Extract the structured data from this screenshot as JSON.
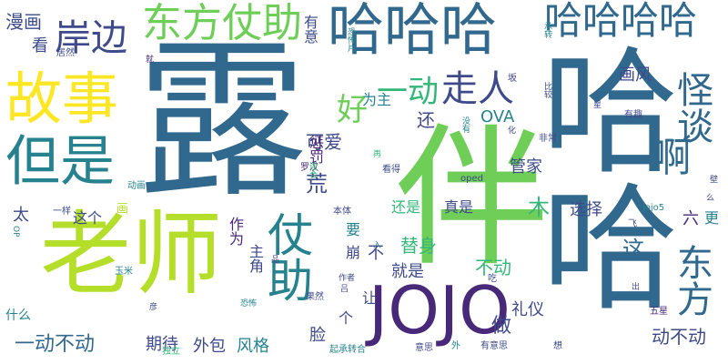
{
  "palette": {
    "dark_purple": "#482878",
    "indigo": "#3e4a89",
    "blue": "#31688e",
    "teal": "#26828e",
    "green": "#35b779",
    "light_green": "#6ece58",
    "yellow_green": "#b5de2b",
    "yellow": "#fde725"
  },
  "words": [
    {
      "text": "露",
      "weight": 1.0,
      "color": "blue"
    },
    {
      "text": "伴",
      "weight": 0.98,
      "color": "light_green"
    },
    {
      "text": "哈哈",
      "weight": 0.9,
      "color": "blue"
    },
    {
      "text": "老师",
      "weight": 0.7,
      "color": "yellow_green"
    },
    {
      "text": "哈哈哈",
      "weight": 0.55,
      "color": "blue"
    },
    {
      "text": "JOJO",
      "weight": 0.48,
      "color": "dark_purple"
    },
    {
      "text": "故事",
      "weight": 0.45,
      "color": "yellow"
    },
    {
      "text": "但是",
      "weight": 0.44,
      "color": "teal"
    },
    {
      "text": "仗助",
      "weight": 0.38,
      "color": "teal"
    },
    {
      "text": "东方仗助",
      "weight": 0.3,
      "color": "light_green"
    },
    {
      "text": "哈哈哈哈",
      "weight": 0.3,
      "color": "blue"
    },
    {
      "text": "岸边",
      "weight": 0.28,
      "color": "indigo"
    },
    {
      "text": "怪谈",
      "weight": 0.26,
      "color": "blue"
    },
    {
      "text": "东方",
      "weight": 0.26,
      "color": "blue"
    },
    {
      "text": "啊",
      "weight": 0.24,
      "color": "blue"
    },
    {
      "text": "走人",
      "weight": 0.22,
      "color": "indigo"
    },
    {
      "text": "一动",
      "weight": 0.18,
      "color": "green"
    },
    {
      "text": "好",
      "weight": 0.18,
      "color": "light_green"
    },
    {
      "text": "漫画",
      "weight": 0.12,
      "color": "indigo"
    },
    {
      "text": "有意",
      "weight": 0.1,
      "color": "indigo"
    },
    {
      "text": "画风",
      "weight": 0.12,
      "color": "indigo"
    },
    {
      "text": "看",
      "weight": 0.1,
      "color": "indigo"
    },
    {
      "text": "还",
      "weight": 0.12,
      "color": "indigo"
    },
    {
      "text": "可爱",
      "weight": 0.12,
      "color": "indigo"
    },
    {
      "text": "OVA",
      "weight": 0.12,
      "color": "teal"
    },
    {
      "text": "为主",
      "weight": 0.1,
      "color": "teal"
    },
    {
      "text": "惩罚",
      "weight": 0.1,
      "color": "dark_purple"
    },
    {
      "text": "管家",
      "weight": 0.12,
      "color": "indigo"
    },
    {
      "text": "荒",
      "weight": 0.14,
      "color": "indigo"
    },
    {
      "text": "木",
      "weight": 0.14,
      "color": "green"
    },
    {
      "text": "选择",
      "weight": 0.12,
      "color": "indigo"
    },
    {
      "text": "太",
      "weight": 0.1,
      "color": "indigo"
    },
    {
      "text": "这个",
      "weight": 0.1,
      "color": "indigo"
    },
    {
      "text": "还是",
      "weight": 0.1,
      "color": "green"
    },
    {
      "text": "真是",
      "weight": 0.1,
      "color": "indigo"
    },
    {
      "text": "要",
      "weight": 0.1,
      "color": "teal"
    },
    {
      "text": "主角",
      "weight": 0.1,
      "color": "indigo"
    },
    {
      "text": "作为",
      "weight": 0.1,
      "color": "dark_purple"
    },
    {
      "text": "崩",
      "weight": 0.1,
      "color": "indigo"
    },
    {
      "text": "替身",
      "weight": 0.12,
      "color": "green"
    },
    {
      "text": "不",
      "weight": 0.1,
      "color": "indigo"
    },
    {
      "text": "就是",
      "weight": 0.1,
      "color": "indigo"
    },
    {
      "text": "不动",
      "weight": 0.12,
      "color": "green"
    },
    {
      "text": "这",
      "weight": 0.14,
      "color": "blue"
    },
    {
      "text": "个",
      "weight": 0.1,
      "color": "indigo"
    },
    {
      "text": "让",
      "weight": 0.1,
      "color": "indigo"
    },
    {
      "text": "礼仪",
      "weight": 0.1,
      "color": "indigo"
    },
    {
      "text": "做",
      "weight": 0.14,
      "color": "indigo"
    },
    {
      "text": "脸",
      "weight": 0.1,
      "color": "indigo"
    },
    {
      "text": "一动不动",
      "weight": 0.14,
      "color": "blue"
    },
    {
      "text": "期待",
      "weight": 0.1,
      "color": "indigo"
    },
    {
      "text": "外包",
      "weight": 0.1,
      "color": "indigo"
    },
    {
      "text": "风格",
      "weight": 0.1,
      "color": "teal"
    },
    {
      "text": "动不动",
      "weight": 0.12,
      "color": "indigo"
    },
    {
      "text": "什么",
      "weight": 0.08,
      "color": "teal"
    },
    {
      "text": "六",
      "weight": 0.1,
      "color": "dark_purple"
    },
    {
      "text": "更",
      "weight": 0.1,
      "color": "teal"
    },
    {
      "text": "jojo5",
      "weight": 0.07,
      "color": "teal"
    },
    {
      "text": "飞",
      "weight": 0.07,
      "color": "indigo"
    },
    {
      "text": "五星",
      "weight": 0.06,
      "color": "dark_purple"
    },
    {
      "text": "有趣",
      "weight": 0.06,
      "color": "indigo"
    },
    {
      "text": "非常",
      "weight": 0.06,
      "color": "indigo"
    },
    {
      "text": "就",
      "weight": 0.06,
      "color": "dark_purple"
    },
    {
      "text": "居然",
      "weight": 0.06,
      "color": "indigo"
    },
    {
      "text": "罗汉",
      "weight": 0.06,
      "color": "dark_purple"
    },
    {
      "text": "看得",
      "weight": 0.06,
      "color": "indigo"
    },
    {
      "text": "一样",
      "weight": 0.06,
      "color": "indigo"
    },
    {
      "text": "本体",
      "weight": 0.06,
      "color": "indigo"
    },
    {
      "text": "动画",
      "weight": 0.06,
      "color": "teal"
    },
    {
      "text": "oped",
      "weight": 0.06,
      "color": "indigo"
    },
    {
      "text": "玉米",
      "weight": 0.06,
      "color": "teal"
    },
    {
      "text": "作者",
      "weight": 0.06,
      "color": "indigo"
    },
    {
      "text": "吃",
      "weight": 0.06,
      "color": "indigo"
    },
    {
      "text": "果然",
      "weight": 0.06,
      "color": "indigo"
    },
    {
      "text": "恐怖",
      "weight": 0.06,
      "color": "teal"
    },
    {
      "text": "独立",
      "weight": 0.06,
      "color": "green"
    },
    {
      "text": "起承转合",
      "weight": 0.06,
      "color": "teal"
    },
    {
      "text": "意思",
      "weight": 0.06,
      "color": "indigo"
    },
    {
      "text": "有意思",
      "weight": 0.06,
      "color": "indigo"
    },
    {
      "text": "外",
      "weight": 0.06,
      "color": "teal"
    },
    {
      "text": "想",
      "weight": 0.06,
      "color": "indigo"
    },
    {
      "text": "彦",
      "weight": 0.06,
      "color": "indigo"
    },
    {
      "text": "承转",
      "weight": 0.05,
      "color": "teal"
    },
    {
      "text": "恐怖片",
      "weight": 0.05,
      "color": "teal"
    },
    {
      "text": "坂",
      "weight": 0.05,
      "color": "indigo"
    },
    {
      "text": "星",
      "weight": 0.05,
      "color": "indigo"
    },
    {
      "text": "壁",
      "weight": 0.05,
      "color": "indigo"
    },
    {
      "text": "么",
      "weight": 0.05,
      "color": "indigo"
    },
    {
      "text": "出",
      "weight": 0.05,
      "color": "indigo"
    },
    {
      "text": "OP",
      "weight": 0.05,
      "color": "teal"
    },
    {
      "text": "画",
      "weight": 0.08,
      "color": "yellow_green"
    },
    {
      "text": "再",
      "weight": 0.05,
      "color": "green"
    },
    {
      "text": "入",
      "weight": 0.05,
      "color": "teal"
    },
    {
      "text": "化",
      "weight": 0.05,
      "color": "indigo"
    },
    {
      "text": "没有",
      "weight": 0.05,
      "color": "teal"
    },
    {
      "text": "适合",
      "weight": 0.05,
      "color": "green"
    },
    {
      "text": "吕",
      "weight": 0.05,
      "color": "indigo"
    },
    {
      "text": "比较",
      "weight": 0.05,
      "color": "indigo"
    },
    {
      "text": "品",
      "weight": 0.05,
      "color": "indigo"
    }
  ]
}
